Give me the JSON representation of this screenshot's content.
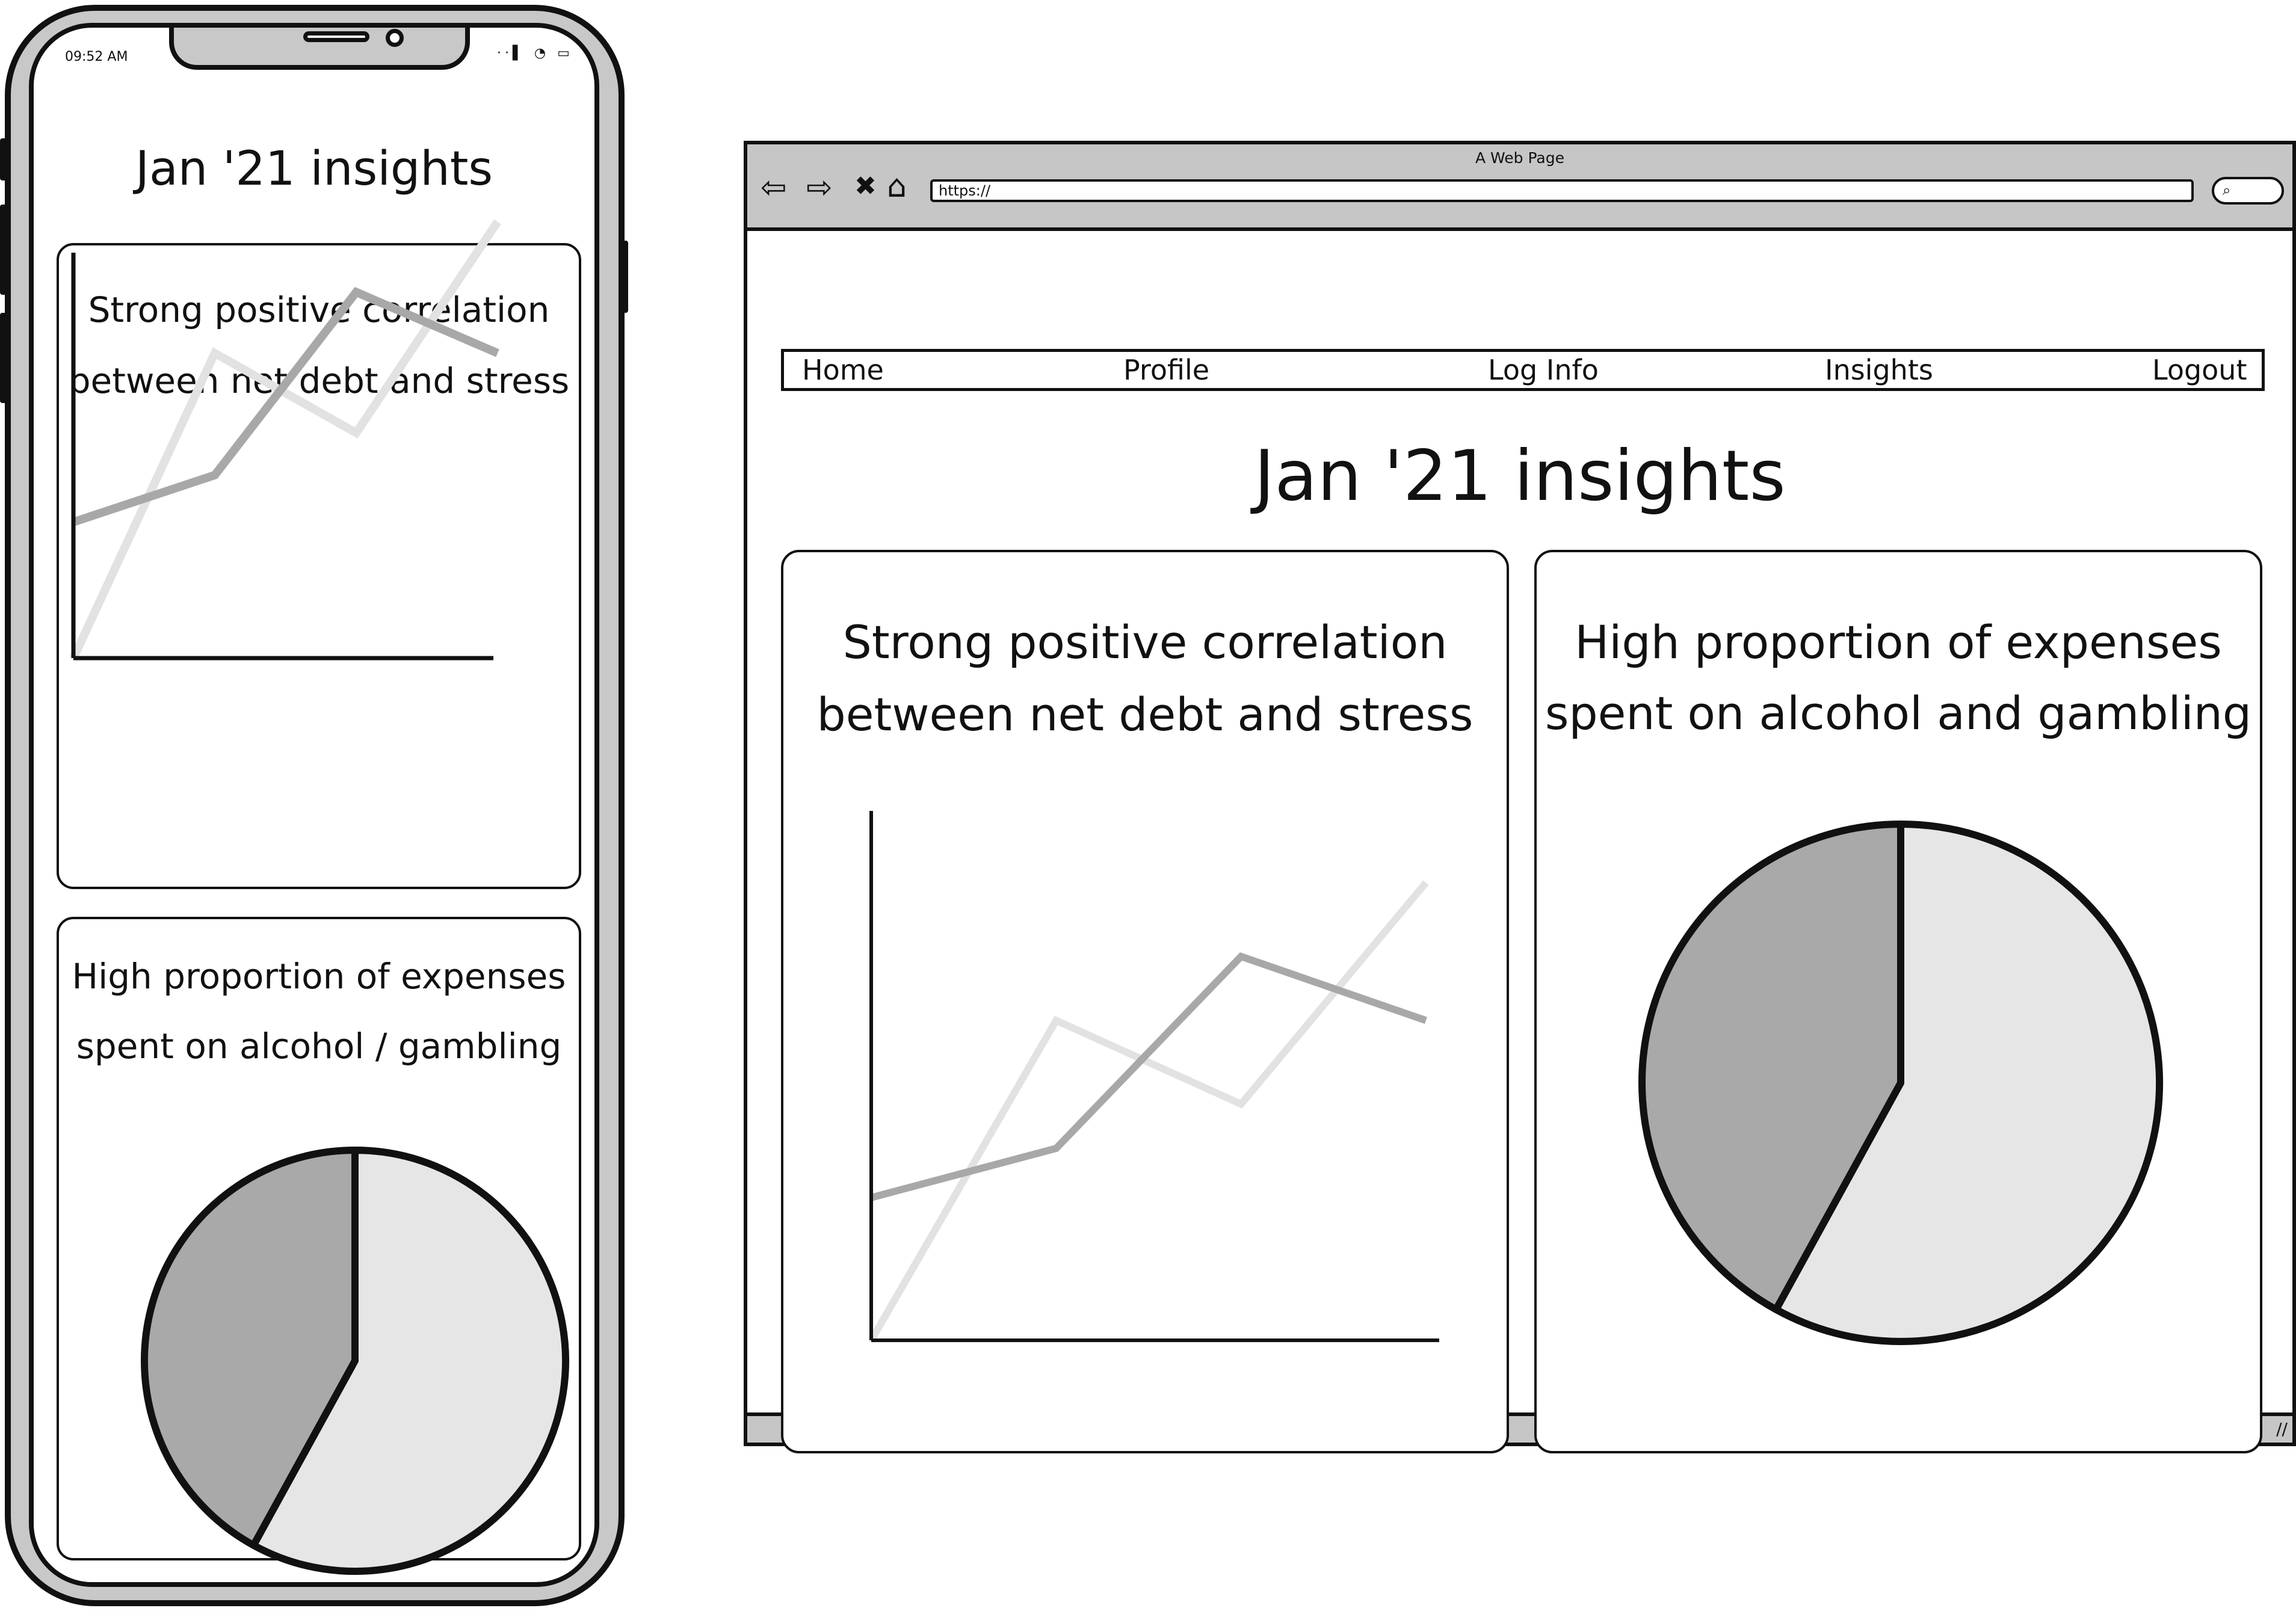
{
  "phone": {
    "status_time": "09:52 AM",
    "status_icons": "··▌ ◔ ▭",
    "title": "Jan '21 insights",
    "card_line_title": [
      "Strong positive correlation",
      "between net debt and stress"
    ],
    "card_pie_title": [
      "High proportion of expenses",
      "spent on alcohol / gambling"
    ]
  },
  "browser": {
    "window_title": "A Web Page",
    "url": "https://",
    "search_glyph": "⌕",
    "back_glyph": "⇦",
    "forward_glyph": "⇨",
    "stop_glyph": "✖",
    "home_glyph": "⌂",
    "grip_glyph": "//",
    "menu": [
      "Home",
      "Profile",
      "Log Info",
      "Insights",
      "Logout"
    ],
    "title": "Jan '21 insights",
    "card_line_title": [
      "Strong positive correlation",
      "between net debt and stress"
    ],
    "card_pie_title": [
      "High proportion of expenses",
      "spent on alcohol and gambling"
    ]
  },
  "colors": {
    "series_light": "#e2e2e2",
    "series_dark": "#a8a8a8",
    "pie_light": "#e6e6e6",
    "pie_dark": "#a9a9a9",
    "frame": "#c6c6c6"
  },
  "chart_data": [
    {
      "type": "line",
      "x": [
        0,
        1,
        2,
        3
      ],
      "series": [
        {
          "values": [
            0,
            6.5,
            4.8,
            9.3
          ]
        },
        {
          "values": [
            2.9,
            3.9,
            7.8,
            6.5
          ]
        }
      ],
      "xlim": [
        0,
        3
      ],
      "ylim": [
        0,
        10
      ],
      "grid": false
    },
    {
      "type": "pie",
      "values": [
        58,
        42
      ]
    }
  ]
}
